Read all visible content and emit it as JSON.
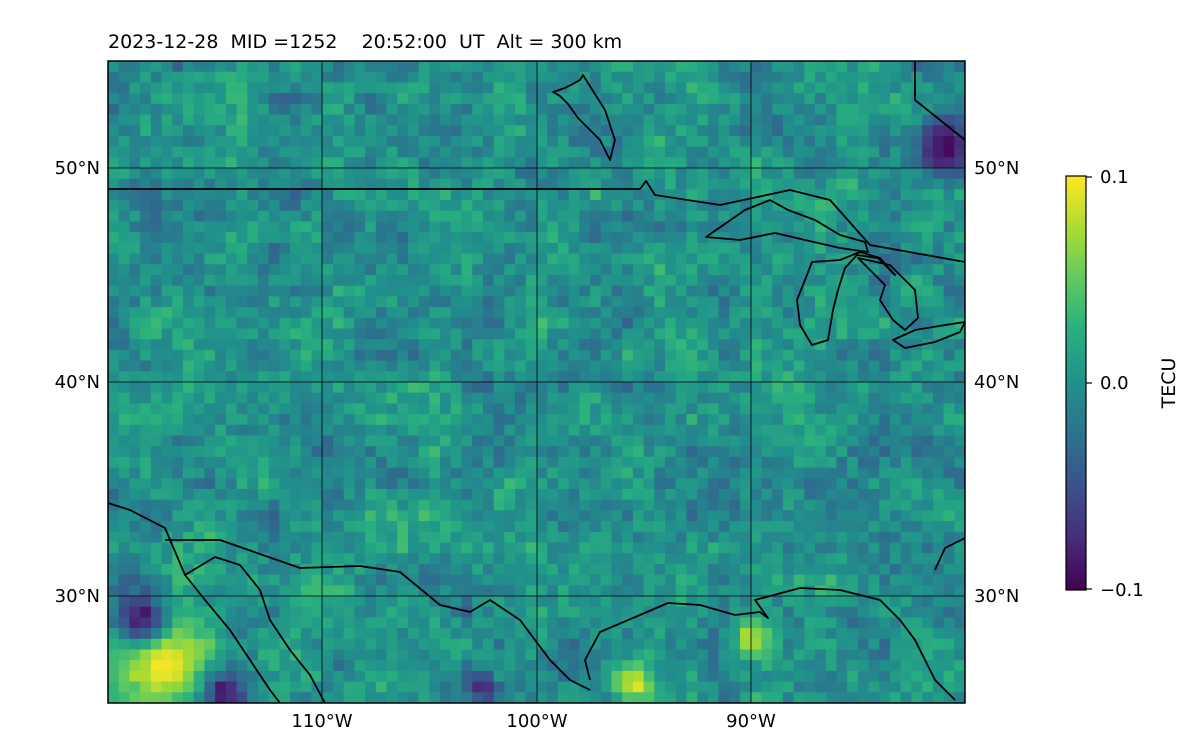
{
  "chart_data": {
    "type": "heatmap",
    "title": "2023-12-28  MID =1252    20:52:00  UT  Alt = 300 km",
    "map": {
      "lon_range": [
        -120,
        -80
      ],
      "lat_range": [
        25,
        55
      ],
      "x_ticks": [
        -110,
        -100,
        -90
      ],
      "x_tick_labels": [
        "110°W",
        "100°W",
        "90°W"
      ],
      "y_ticks": [
        30,
        40,
        50
      ],
      "y_tick_labels": [
        "30°N",
        "40°N",
        "50°N"
      ],
      "grid": true,
      "coastlines": true,
      "borders": true
    },
    "colorbar": {
      "label": "TECU",
      "colormap": "viridis",
      "range": [
        -0.1,
        0.1
      ],
      "ticks": [
        0.1,
        0.0,
        -0.1
      ],
      "tick_labels": [
        "0.1",
        "0.0",
        "−0.1"
      ]
    },
    "field": {
      "grid_size": [
        80,
        60
      ],
      "base_value": 0.0,
      "noise_amplitude": 0.035,
      "hotspots": [
        {
          "lon": -117.5,
          "lat": 27.0,
          "value": 0.1,
          "radius_deg": 1.6
        },
        {
          "lon": -95.5,
          "lat": 26.0,
          "value": 0.09,
          "radius_deg": 0.7
        },
        {
          "lon": -90.0,
          "lat": 28.0,
          "value": 0.08,
          "radius_deg": 0.6
        },
        {
          "lon": -118.5,
          "lat": 29.0,
          "value": -0.09,
          "radius_deg": 0.9
        },
        {
          "lon": -114.5,
          "lat": 25.5,
          "value": -0.09,
          "radius_deg": 0.7
        },
        {
          "lon": -81.0,
          "lat": 51.0,
          "value": -0.1,
          "radius_deg": 0.9
        },
        {
          "lon": -102.5,
          "lat": 25.8,
          "value": -0.08,
          "radius_deg": 0.5
        }
      ]
    }
  }
}
